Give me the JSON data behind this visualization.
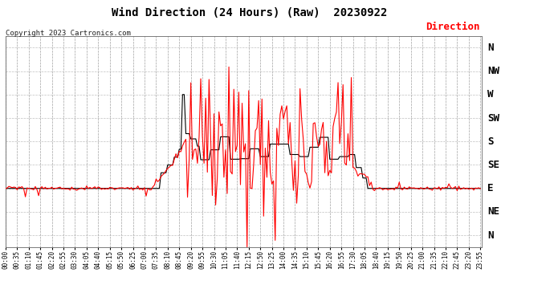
{
  "title": "Wind Direction (24 Hours) (Raw)  20230922",
  "copyright": "Copyright 2023 Cartronics.com",
  "legend_label": "Direction",
  "legend_color": "#ff0000",
  "background_color": "#ffffff",
  "plot_bg_color": "#ffffff",
  "grid_color": "#b0b0b0",
  "line_color_red": "#ff0000",
  "line_color_black": "#000000",
  "ytick_labels": [
    "N",
    "NW",
    "W",
    "SW",
    "S",
    "SE",
    "E",
    "NE",
    "N"
  ],
  "ytick_values": [
    360,
    315,
    270,
    225,
    180,
    135,
    90,
    45,
    0
  ],
  "ylim": [
    -22,
    382
  ],
  "figsize": [
    6.9,
    3.75
  ],
  "dpi": 100
}
